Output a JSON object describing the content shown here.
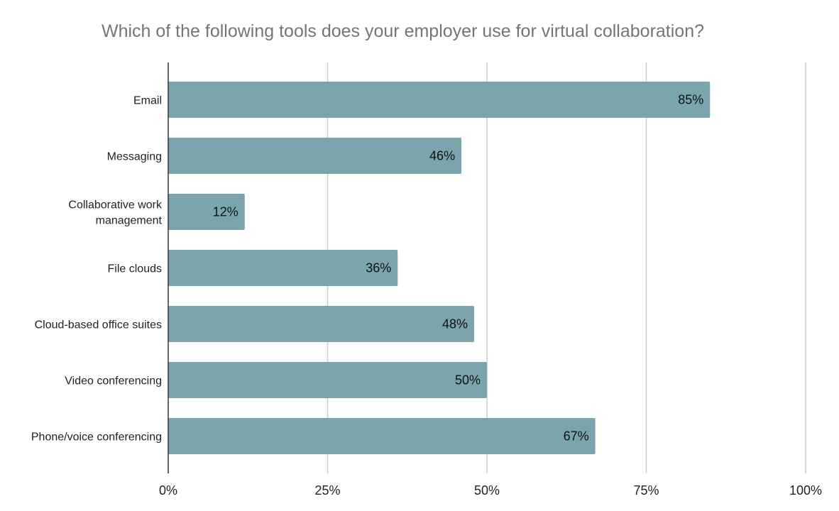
{
  "chart_data": {
    "type": "bar",
    "orientation": "horizontal",
    "title": "Which of the following tools does your employer use for virtual collaboration?",
    "categories": [
      "Email",
      "Messaging",
      "Collaborative work management",
      "File clouds",
      "Cloud-based office suites",
      "Video conferencing",
      "Phone/voice conferencing"
    ],
    "category_lines": [
      [
        "Email"
      ],
      [
        "Messaging"
      ],
      [
        "Collaborative work",
        "management"
      ],
      [
        "File clouds"
      ],
      [
        "Cloud-based office suites"
      ],
      [
        "Video conferencing"
      ],
      [
        "Phone/voice conferencing"
      ]
    ],
    "values": [
      85,
      46,
      12,
      36,
      48,
      50,
      67
    ],
    "value_labels": [
      "85%",
      "46%",
      "12%",
      "36%",
      "48%",
      "50%",
      "67%"
    ],
    "xlim": [
      0,
      100
    ],
    "xticks": [
      0,
      25,
      50,
      75,
      100
    ],
    "xtick_labels": [
      "0%",
      "25%",
      "50%",
      "75%",
      "100%"
    ],
    "xlabel": "",
    "ylabel": "",
    "grid": "vertical",
    "legend": "none",
    "colors": {
      "bar": "#7aa5ad",
      "grid": "#cccccc",
      "axis": "#333333",
      "title": "#757575"
    }
  }
}
